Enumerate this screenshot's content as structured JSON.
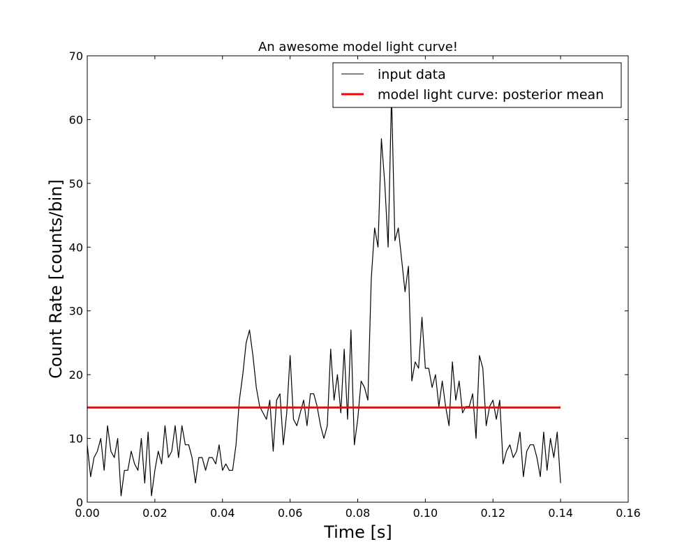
{
  "chart_data": {
    "type": "line",
    "title": "An awesome model light curve!",
    "xlabel": "Time [s]",
    "ylabel": "Count Rate [counts/bin]",
    "xlim": [
      0.0,
      0.16
    ],
    "ylim": [
      0,
      70
    ],
    "x_ticks": [
      0.0,
      0.02,
      0.04,
      0.06,
      0.08,
      0.1,
      0.12,
      0.14,
      0.16
    ],
    "x_tick_labels": [
      "0.00",
      "0.02",
      "0.04",
      "0.06",
      "0.08",
      "0.10",
      "0.12",
      "0.14",
      "0.16"
    ],
    "y_ticks": [
      0,
      10,
      20,
      30,
      40,
      50,
      60,
      70
    ],
    "y_tick_labels": [
      "0",
      "10",
      "20",
      "30",
      "40",
      "50",
      "60",
      "70"
    ],
    "grid": false,
    "legend_position": "top-right",
    "series": [
      {
        "name": "input data",
        "color": "#000000",
        "x": [
          0.0,
          0.001,
          0.002,
          0.003,
          0.004,
          0.005,
          0.006,
          0.007,
          0.008,
          0.009,
          0.01,
          0.011,
          0.012,
          0.013,
          0.014,
          0.015,
          0.016,
          0.017,
          0.018,
          0.019,
          0.02,
          0.021,
          0.022,
          0.023,
          0.024,
          0.025,
          0.026,
          0.027,
          0.028,
          0.029,
          0.03,
          0.031,
          0.032,
          0.033,
          0.034,
          0.035,
          0.036,
          0.037,
          0.038,
          0.039,
          0.04,
          0.041,
          0.042,
          0.043,
          0.044,
          0.045,
          0.046,
          0.047,
          0.048,
          0.049,
          0.05,
          0.051,
          0.052,
          0.053,
          0.054,
          0.055,
          0.056,
          0.057,
          0.058,
          0.059,
          0.06,
          0.061,
          0.062,
          0.063,
          0.064,
          0.065,
          0.066,
          0.067,
          0.068,
          0.069,
          0.07,
          0.071,
          0.072,
          0.073,
          0.074,
          0.075,
          0.076,
          0.077,
          0.078,
          0.079,
          0.08,
          0.081,
          0.082,
          0.083,
          0.084,
          0.085,
          0.086,
          0.087,
          0.088,
          0.089,
          0.09,
          0.091,
          0.092,
          0.093,
          0.094,
          0.095,
          0.096,
          0.097,
          0.098,
          0.099,
          0.1,
          0.101,
          0.102,
          0.103,
          0.104,
          0.105,
          0.106,
          0.107,
          0.108,
          0.109,
          0.11,
          0.111,
          0.112,
          0.113,
          0.114,
          0.115,
          0.116,
          0.117,
          0.118,
          0.119,
          0.12,
          0.121,
          0.122,
          0.123,
          0.124,
          0.125,
          0.126,
          0.127,
          0.128,
          0.129,
          0.13,
          0.131,
          0.132,
          0.133,
          0.134,
          0.135,
          0.136,
          0.137,
          0.138,
          0.139,
          0.14
        ],
        "values": [
          9,
          4,
          7,
          8,
          10,
          5,
          12,
          8,
          7,
          10,
          1,
          5,
          5,
          8,
          6,
          5,
          10,
          3,
          11,
          1,
          5,
          8,
          6,
          12,
          7,
          8,
          12,
          7,
          12,
          9,
          9,
          7,
          3,
          7,
          7,
          5,
          7,
          7,
          6,
          9,
          5,
          6,
          5,
          5,
          9,
          16,
          20,
          25,
          27,
          23,
          18,
          15,
          14,
          13,
          16,
          8,
          16,
          17,
          9,
          14,
          23,
          13,
          12,
          14,
          16,
          12,
          17,
          17,
          15,
          12,
          10,
          12,
          24,
          16,
          20,
          14,
          24,
          13,
          27,
          9,
          13,
          19,
          18,
          16,
          35,
          43,
          40,
          57,
          50,
          40,
          64,
          41,
          43,
          38,
          33,
          37,
          19,
          22,
          21,
          29,
          21,
          21,
          18,
          20,
          15,
          19,
          15,
          12,
          22,
          16,
          19,
          14,
          15,
          15,
          17,
          10,
          23,
          21,
          12,
          15,
          16,
          13,
          16,
          6,
          8,
          9,
          7,
          8,
          11,
          4,
          8,
          9,
          9,
          7,
          4,
          11,
          5,
          10,
          7,
          11,
          3
        ]
      },
      {
        "name": "model light curve: posterior mean",
        "color": "#ff0000",
        "x": [
          0.0,
          0.14
        ],
        "values": [
          14.85,
          14.85
        ]
      }
    ]
  }
}
